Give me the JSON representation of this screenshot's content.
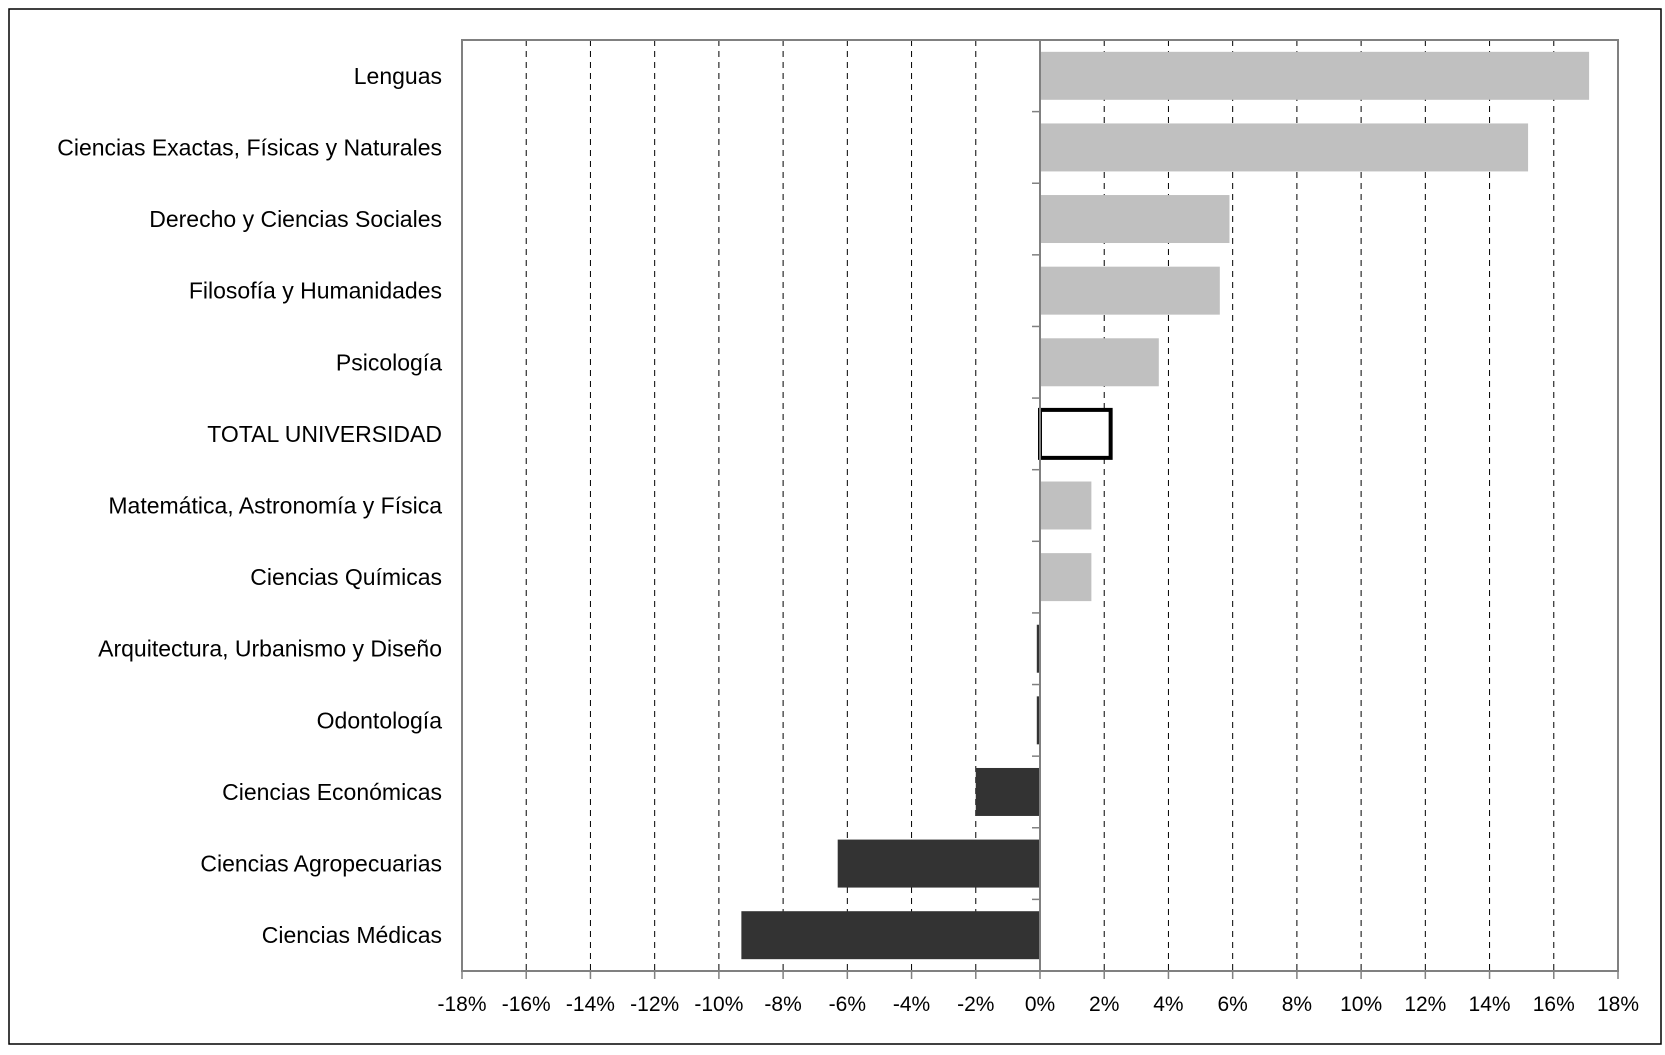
{
  "colors": {
    "positive": "#c0c0c0",
    "negative": "#333333",
    "total_fill": "#ffffff",
    "total_stroke": "#000000",
    "grid": "#000000",
    "axis": "#808080"
  },
  "chart_data": {
    "type": "bar",
    "orientation": "horizontal",
    "title": "",
    "xlabel": "",
    "ylabel": "",
    "categories": [
      "Lenguas",
      "Ciencias Exactas, Físicas y Naturales",
      "Derecho y Ciencias Sociales",
      "Filosofía y Humanidades",
      "Psicología",
      "TOTAL UNIVERSIDAD",
      "Matemática, Astronomía y Física",
      "Ciencias Químicas",
      "Arquitectura, Urbanismo y Diseño",
      "Odontología",
      "Ciencias Económicas",
      "Ciencias Agropecuarias",
      "Ciencias Médicas"
    ],
    "values": [
      17.1,
      15.2,
      5.9,
      5.6,
      3.7,
      2.2,
      1.6,
      1.6,
      -0.1,
      -0.1,
      -2.0,
      -6.3,
      -9.3
    ],
    "highlight": "TOTAL UNIVERSIDAD",
    "xlim": [
      -18,
      18
    ],
    "x_ticks": [
      "-18%",
      "-16%",
      "-14%",
      "-12%",
      "-10%",
      "-8%",
      "-6%",
      "-4%",
      "-2%",
      "0%",
      "2%",
      "4%",
      "6%",
      "8%",
      "10%",
      "12%",
      "14%",
      "16%",
      "18%"
    ],
    "x_tick_values": [
      -18,
      -16,
      -14,
      -12,
      -10,
      -8,
      -6,
      -4,
      -2,
      0,
      2,
      4,
      6,
      8,
      10,
      12,
      14,
      16,
      18
    ],
    "grid": "vertical-dashed",
    "legend": "none"
  }
}
